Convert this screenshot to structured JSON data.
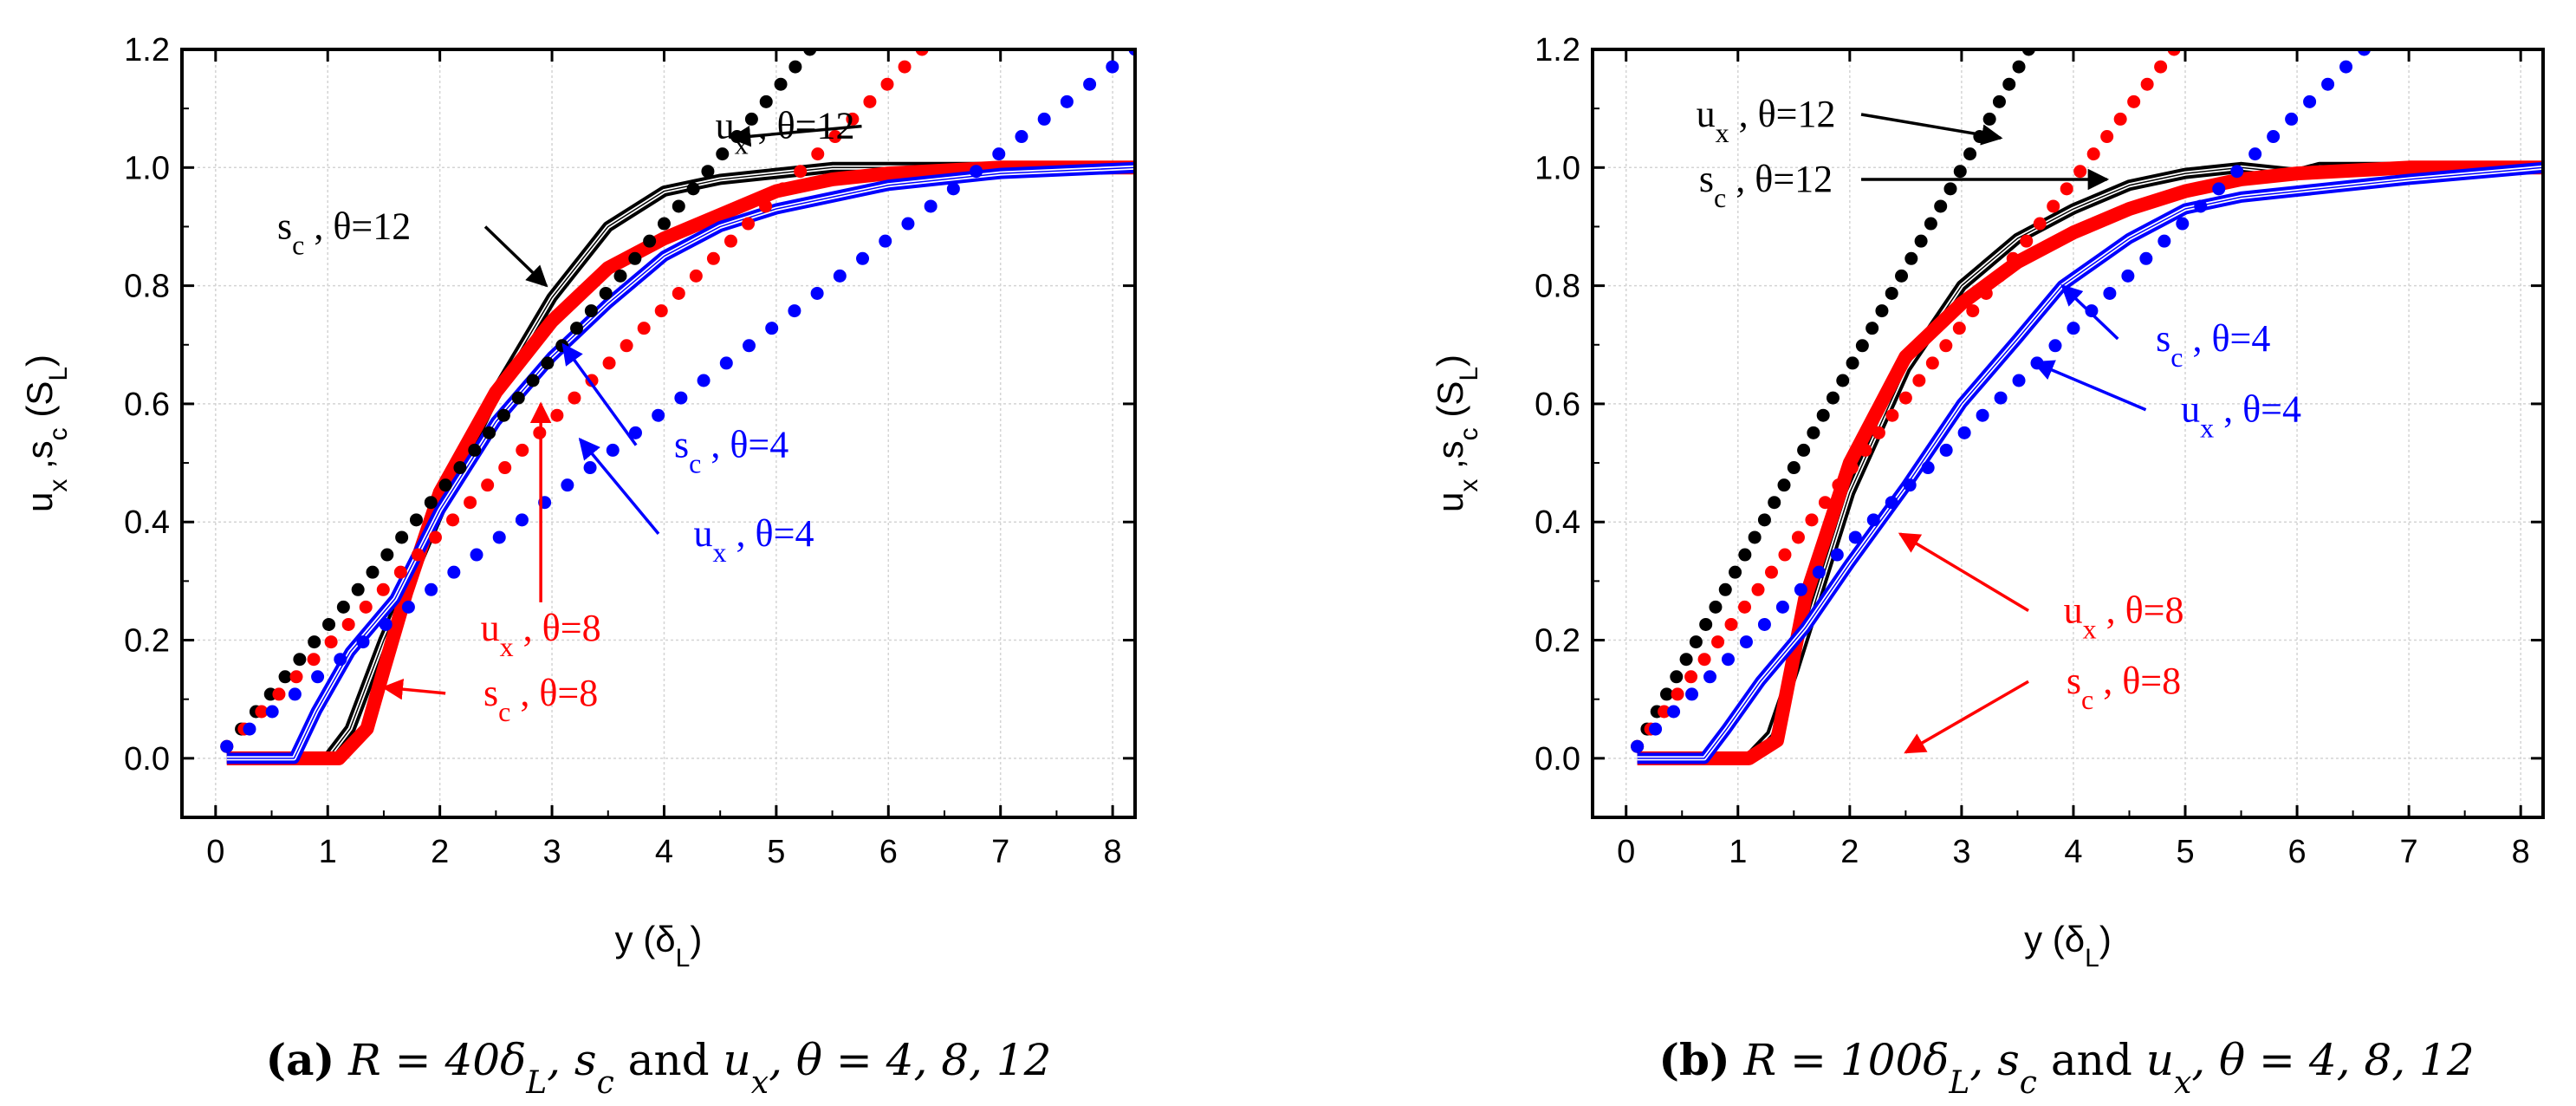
{
  "colors": {
    "black": "#000000",
    "red": "#ff0000",
    "blue": "#0000ff"
  },
  "chart_data": [
    {
      "id": "a",
      "type": "line",
      "xlabel": "y (δ_L)",
      "ylabel": "u_x ,s_c (S_L)",
      "xlim": [
        -0.3,
        8.2
      ],
      "ylim": [
        -0.1,
        1.2
      ],
      "xticks": [
        "0",
        "1",
        "2",
        "3",
        "4",
        "5",
        "6",
        "7",
        "8"
      ],
      "yticks": [
        "0.0",
        "0.2",
        "0.4",
        "0.6",
        "0.8",
        "1.0",
        "1.2"
      ],
      "caption": {
        "label": "(a)",
        "text": "R = 40δ_L, s_c and u_x, θ = 4, 8, 12"
      },
      "series": [
        {
          "name": "s_c, θ=12",
          "color": "black",
          "style": "double",
          "x": [
            0.1,
            1.0,
            1.2,
            1.5,
            2.0,
            2.5,
            3.0,
            3.5,
            4.0,
            4.5,
            5.0,
            5.5,
            6.0,
            7.0,
            8.2
          ],
          "y": [
            0.0,
            0.0,
            0.05,
            0.2,
            0.42,
            0.62,
            0.78,
            0.9,
            0.96,
            0.98,
            0.99,
            1.0,
            1.0,
            1.0,
            1.0
          ]
        },
        {
          "name": "s_c, θ=8",
          "color": "red",
          "style": "thick",
          "x": [
            0.1,
            1.1,
            1.35,
            1.5,
            1.7,
            2.0,
            2.5,
            3.0,
            3.5,
            4.0,
            4.5,
            5.0,
            5.5,
            6.0,
            7.0,
            8.2
          ],
          "y": [
            0.0,
            0.0,
            0.05,
            0.15,
            0.28,
            0.45,
            0.62,
            0.74,
            0.83,
            0.88,
            0.92,
            0.96,
            0.98,
            0.99,
            1.0,
            1.0
          ]
        },
        {
          "name": "s_c, θ=4",
          "color": "blue",
          "style": "double",
          "x": [
            0.1,
            0.7,
            0.9,
            1.2,
            1.6,
            2.0,
            2.5,
            3.0,
            3.5,
            4.0,
            4.5,
            5.0,
            5.5,
            6.0,
            7.0,
            8.2
          ],
          "y": [
            0.0,
            0.0,
            0.08,
            0.18,
            0.27,
            0.42,
            0.57,
            0.68,
            0.77,
            0.85,
            0.9,
            0.93,
            0.95,
            0.97,
            0.99,
            1.0
          ]
        },
        {
          "name": "u_x, θ=12",
          "color": "black",
          "style": "dots",
          "x": [
            0.1,
            5.3
          ],
          "y": [
            0.02,
            1.2
          ]
        },
        {
          "name": "u_x, θ=8",
          "color": "red",
          "style": "dots",
          "x": [
            0.1,
            6.3
          ],
          "y": [
            0.02,
            1.2
          ]
        },
        {
          "name": "u_x, θ=4",
          "color": "blue",
          "style": "dots",
          "x": [
            0.1,
            8.2
          ],
          "y": [
            0.02,
            1.2
          ]
        }
      ],
      "annotations": [
        {
          "label": "u",
          "sub": "x",
          "rest": " , θ=12",
          "color": "black",
          "tx": 5.7,
          "ty": 1.07,
          "ax": 4.6,
          "ay": 1.05,
          "anchor": "end"
        },
        {
          "label": "s",
          "sub": "c",
          "rest": " , θ=12",
          "color": "black",
          "tx": 0.55,
          "ty": 0.9,
          "ax": 2.95,
          "ay": 0.8,
          "anchor": "start"
        },
        {
          "label": "s",
          "sub": "c",
          "rest": " , θ=4",
          "color": "blue",
          "tx": 4.6,
          "ty": 0.53,
          "ax": 3.1,
          "ay": 0.7,
          "anchor": "middle"
        },
        {
          "label": "u",
          "sub": "x",
          "rest": " , θ=4",
          "color": "blue",
          "tx": 4.8,
          "ty": 0.38,
          "ax": 3.25,
          "ay": 0.54,
          "anchor": "middle"
        },
        {
          "label": "u",
          "sub": "x",
          "rest": " , θ=8",
          "color": "red",
          "tx": 2.9,
          "ty": 0.22,
          "ax": 2.9,
          "ay": 0.6,
          "anchor": "middle"
        },
        {
          "label": "s",
          "sub": "c",
          "rest": " , θ=8",
          "color": "red",
          "tx": 2.9,
          "ty": 0.11,
          "ax": 1.5,
          "ay": 0.12,
          "anchor": "middle"
        }
      ]
    },
    {
      "id": "b",
      "type": "line",
      "xlabel": "y (δ_L)",
      "ylabel": "u_x ,s_c (S_L)",
      "xlim": [
        -0.3,
        8.2
      ],
      "ylim": [
        -0.1,
        1.2
      ],
      "xticks": [
        "0",
        "1",
        "2",
        "3",
        "4",
        "5",
        "6",
        "7",
        "8"
      ],
      "yticks": [
        "0.0",
        "0.2",
        "0.4",
        "0.6",
        "0.8",
        "1.0",
        "1.2"
      ],
      "caption": {
        "label": "(b)",
        "text": "R = 100δ_L, s_c and u_x, θ = 4, 8, 12"
      },
      "series": [
        {
          "name": "s_c, θ=12",
          "color": "black",
          "style": "double",
          "x": [
            0.1,
            1.1,
            1.3,
            1.5,
            1.8,
            2.0,
            2.5,
            3.0,
            3.5,
            4.0,
            4.5,
            5.0,
            5.5,
            6.0,
            6.2,
            7.0,
            8.2
          ],
          "y": [
            0.0,
            0.0,
            0.04,
            0.15,
            0.33,
            0.45,
            0.66,
            0.8,
            0.88,
            0.93,
            0.97,
            0.99,
            1.0,
            0.99,
            1.0,
            1.0,
            1.0
          ]
        },
        {
          "name": "s_c, θ=8",
          "color": "red",
          "style": "thick",
          "x": [
            0.1,
            1.1,
            1.35,
            1.6,
            2.0,
            2.5,
            3.0,
            3.5,
            4.0,
            4.5,
            5.0,
            5.5,
            6.0,
            7.0,
            8.2
          ],
          "y": [
            0.0,
            0.0,
            0.03,
            0.27,
            0.5,
            0.68,
            0.77,
            0.84,
            0.89,
            0.93,
            0.96,
            0.98,
            0.99,
            1.0,
            1.0
          ]
        },
        {
          "name": "s_c, θ=4",
          "color": "blue",
          "style": "double",
          "x": [
            0.1,
            0.7,
            0.9,
            1.2,
            1.6,
            2.0,
            2.5,
            3.0,
            3.5,
            3.9,
            4.5,
            5.0,
            5.5,
            6.0,
            7.0,
            8.2
          ],
          "y": [
            0.0,
            0.0,
            0.05,
            0.13,
            0.22,
            0.33,
            0.46,
            0.6,
            0.71,
            0.8,
            0.88,
            0.93,
            0.95,
            0.96,
            0.98,
            1.0
          ]
        },
        {
          "name": "u_x, θ=12",
          "color": "black",
          "style": "dots",
          "x": [
            0.1,
            3.6
          ],
          "y": [
            0.02,
            1.2
          ]
        },
        {
          "name": "u_x, θ=8",
          "color": "red",
          "style": "dots",
          "x": [
            0.1,
            4.9
          ],
          "y": [
            0.02,
            1.2
          ]
        },
        {
          "name": "u_x, θ=4",
          "color": "blue",
          "style": "dots",
          "x": [
            0.1,
            6.6
          ],
          "y": [
            0.02,
            1.2
          ]
        }
      ],
      "annotations": [
        {
          "label": "u",
          "sub": "x",
          "rest": " , θ=12",
          "color": "black",
          "tx": 1.25,
          "ty": 1.09,
          "ax": 3.35,
          "ay": 1.05,
          "anchor": "middle"
        },
        {
          "label": "s",
          "sub": "c",
          "rest": " , θ=12",
          "color": "black",
          "tx": 1.25,
          "ty": 0.98,
          "ax": 4.3,
          "ay": 0.98,
          "anchor": "middle"
        },
        {
          "label": "s",
          "sub": "c",
          "rest": " , θ=4",
          "color": "blue",
          "tx": 5.25,
          "ty": 0.71,
          "ax": 3.9,
          "ay": 0.8,
          "anchor": "middle"
        },
        {
          "label": "u",
          "sub": "x",
          "rest": " , θ=4",
          "color": "blue",
          "tx": 5.5,
          "ty": 0.59,
          "ax": 3.65,
          "ay": 0.67,
          "anchor": "middle"
        },
        {
          "label": "u",
          "sub": "x",
          "rest": " , θ=8",
          "color": "red",
          "tx": 4.45,
          "ty": 0.25,
          "ax": 2.45,
          "ay": 0.38,
          "anchor": "middle"
        },
        {
          "label": "s",
          "sub": "c",
          "rest": " , θ=8",
          "color": "red",
          "tx": 4.45,
          "ty": 0.13,
          "ax": 2.5,
          "ay": 0.01,
          "anchor": "middle"
        }
      ]
    }
  ]
}
